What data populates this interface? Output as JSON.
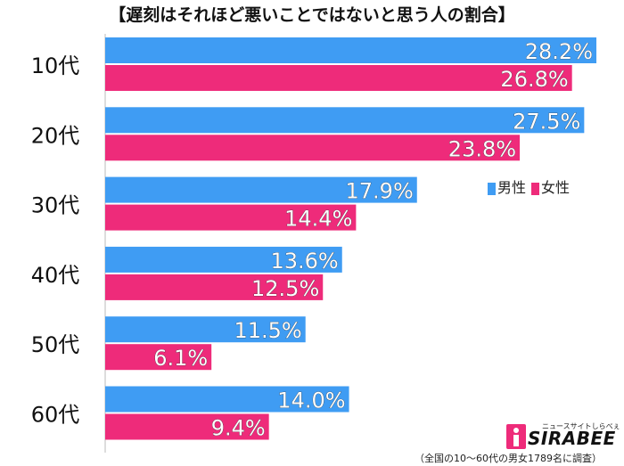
{
  "title": "【遅刻はそれほど悪いことではないと思う人の割合】",
  "chart_data": {
    "type": "bar",
    "orientation": "horizontal",
    "title": "【遅刻はそれほど悪いことではないと思う人の割合】",
    "categories": [
      "10代",
      "20代",
      "30代",
      "40代",
      "50代",
      "60代"
    ],
    "series": [
      {
        "name": "男性",
        "color": "#3f9cf3",
        "values": [
          28.2,
          27.5,
          17.9,
          13.6,
          11.5,
          14.0
        ],
        "labels": [
          "28.2%",
          "27.5%",
          "17.9%",
          "13.6%",
          "11.5%",
          "14.0%"
        ]
      },
      {
        "name": "女性",
        "color": "#ee2b7a",
        "values": [
          26.8,
          23.8,
          14.4,
          12.5,
          6.1,
          9.4
        ],
        "labels": [
          "26.8%",
          "23.8%",
          "14.4%",
          "12.5%",
          "6.1%",
          "9.4%"
        ]
      }
    ],
    "xlim": [
      0,
      30
    ],
    "legend_position": "right"
  },
  "legend": {
    "male": "男性",
    "female": "女性"
  },
  "note": "（全国の10～60代の男女1789名に調査）",
  "logo": {
    "word": "SIRABEE",
    "tagline": "ニュースサイトしらべぇ"
  }
}
